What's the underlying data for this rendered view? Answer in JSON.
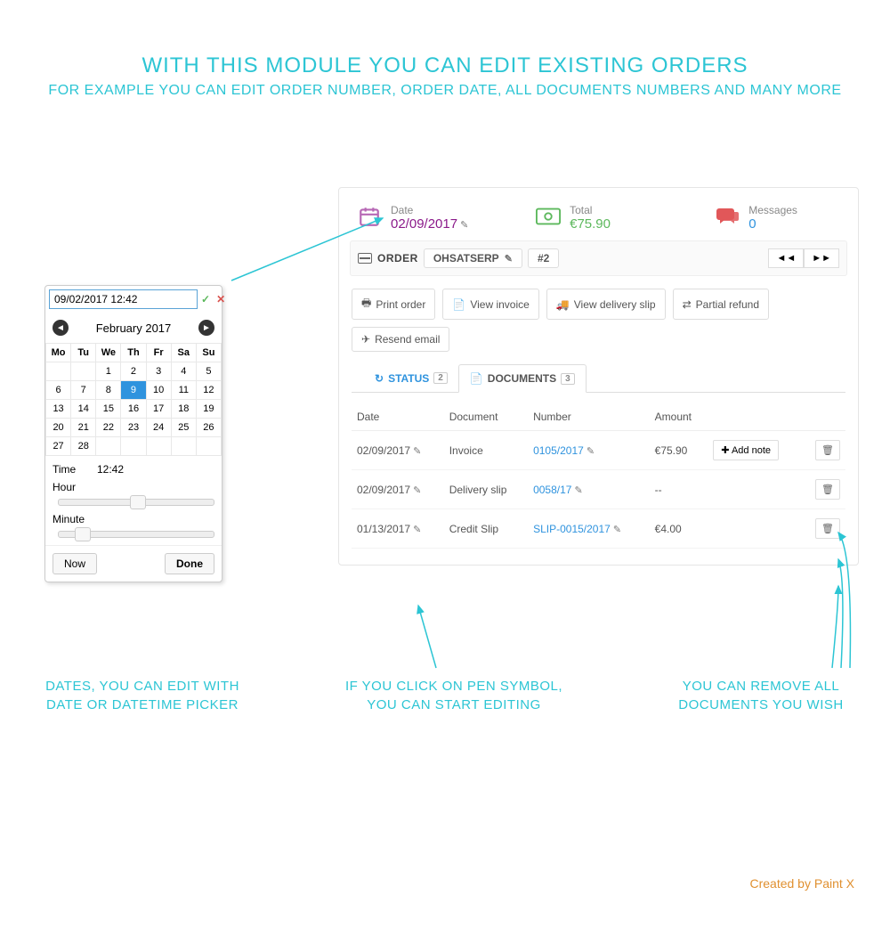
{
  "headline": {
    "title": "WITH THIS MODULE YOU CAN EDIT EXISTING ORDERS",
    "subtitle": "FOR EXAMPLE YOU CAN EDIT ORDER NUMBER, ORDER DATE, ALL DOCUMENTS NUMBERS AND MANY MORE"
  },
  "colors": {
    "accent_cyan": "#2cc5d4",
    "link_blue": "#2f93de",
    "purple": "#8b1a8a",
    "green": "#5cb85c",
    "red": "#d9534f",
    "orange": "#e09030"
  },
  "datepicker": {
    "input_value": "09/02/2017 12:42",
    "month_label": "February 2017",
    "weekdays": [
      "Mo",
      "Tu",
      "We",
      "Th",
      "Fr",
      "Sa",
      "Su"
    ],
    "selected_day": 9,
    "time_label": "Time",
    "time_value": "12:42",
    "hour_label": "Hour",
    "minute_label": "Minute",
    "now_label": "Now",
    "done_label": "Done",
    "hour_slider_pos": 0.53,
    "minute_slider_pos": 0.12
  },
  "order": {
    "date_label": "Date",
    "date_value": "02/09/2017",
    "total_label": "Total",
    "total_value": "€75.90",
    "messages_label": "Messages",
    "messages_value": "0",
    "bar_label": "ORDER",
    "reference": "OHSATSERP",
    "number": "#2"
  },
  "toolbar": {
    "print": "Print order",
    "invoice": "View invoice",
    "delivery": "View delivery slip",
    "refund": "Partial refund",
    "resend": "Resend email"
  },
  "tabs": {
    "status_label": "STATUS",
    "status_count": "2",
    "documents_label": "DOCUMENTS",
    "documents_count": "3"
  },
  "doc_headers": {
    "date": "Date",
    "document": "Document",
    "number": "Number",
    "amount": "Amount"
  },
  "documents": [
    {
      "date": "02/09/2017",
      "type": "Invoice",
      "number": "0105/2017",
      "amount": "€75.90",
      "note": true
    },
    {
      "date": "02/09/2017",
      "type": "Delivery slip",
      "number": "0058/17",
      "amount": "--",
      "note": false
    },
    {
      "date": "01/13/2017",
      "type": "Credit Slip",
      "number": "SLIP-0015/2017",
      "amount": "€4.00",
      "note": false
    }
  ],
  "add_note_label": "Add note",
  "annotations": {
    "left": "DATES, YOU CAN EDIT WITH\nDATE OR DATETIME PICKER",
    "middle": "IF YOU CLICK ON PEN SYMBOL,\nYOU CAN START EDITING",
    "right": "YOU CAN REMOVE ALL\nDOCUMENTS YOU WISH"
  },
  "credit": "Created by Paint X"
}
